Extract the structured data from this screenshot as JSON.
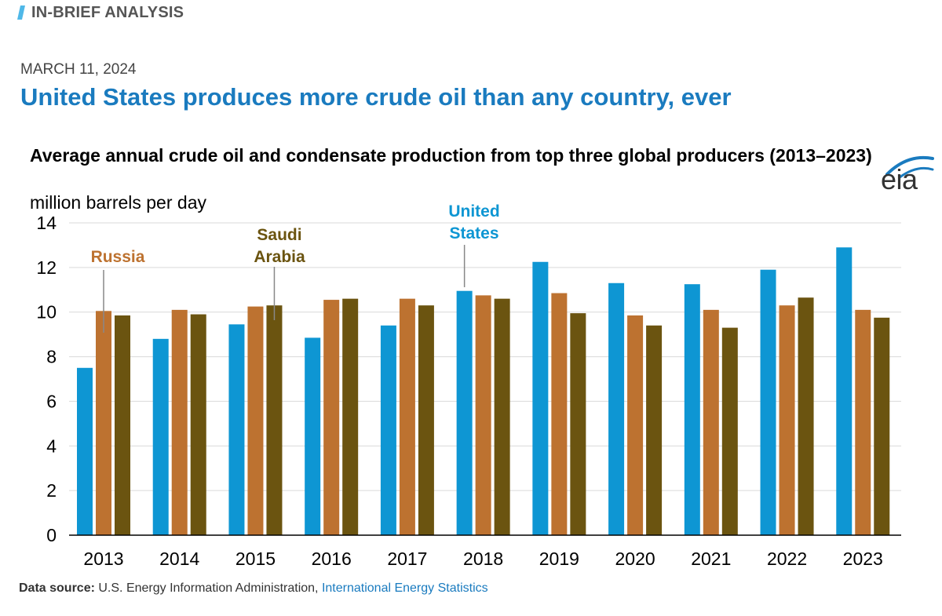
{
  "header": {
    "section_label": "IN-BRIEF ANALYSIS",
    "date": "MARCH 11, 2024",
    "headline": "United States produces more crude oil than any country, ever"
  },
  "brand": {
    "logo_text": "eia"
  },
  "colors": {
    "accent": "#1a7bbf",
    "united_states": "#0e96d3",
    "russia": "#bd7230",
    "saudi_arabia": "#6b5410",
    "axis": "#000000",
    "grid": "#d9d9d9"
  },
  "footer": {
    "source_label": "Data source:",
    "source_text": "U.S. Energy Information Administration,",
    "source_link": "International Energy Statistics"
  },
  "chart_data": {
    "type": "bar",
    "title": "Average annual crude oil and condensate production from top three global producers (2013–2023)",
    "ylabel": "million barrels per day",
    "xlabel": "",
    "ylim": [
      0,
      14
    ],
    "yticks": [
      "0",
      "2",
      "4",
      "6",
      "8",
      "10",
      "12",
      "14"
    ],
    "grid": true,
    "categories": [
      "2013",
      "2014",
      "2015",
      "2016",
      "2017",
      "2018",
      "2019",
      "2020",
      "2021",
      "2022",
      "2023"
    ],
    "series": [
      {
        "name": "United States",
        "label_lines": [
          "United",
          "States"
        ],
        "values": [
          7.5,
          8.8,
          9.45,
          8.85,
          9.4,
          10.95,
          12.25,
          11.3,
          11.25,
          11.9,
          12.9
        ]
      },
      {
        "name": "Russia",
        "label_lines": [
          "Russia"
        ],
        "values": [
          10.05,
          10.1,
          10.25,
          10.55,
          10.6,
          10.75,
          10.85,
          9.85,
          10.1,
          10.3,
          10.1
        ]
      },
      {
        "name": "Saudi Arabia",
        "label_lines": [
          "Saudi",
          "Arabia"
        ],
        "values": [
          9.85,
          9.9,
          10.3,
          10.6,
          10.3,
          10.6,
          9.95,
          9.4,
          9.3,
          10.65,
          9.75
        ]
      }
    ]
  }
}
